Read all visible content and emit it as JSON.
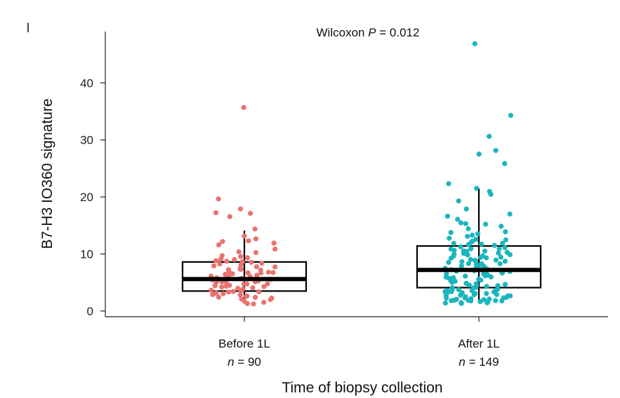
{
  "panel_mark": "l",
  "chart_data": {
    "type": "box",
    "title": "",
    "ylabel": "B7-H3 IO360 signature",
    "xlabel": "Time of biopsy collection",
    "ylim": [
      -1,
      49
    ],
    "yticks": [
      0,
      10,
      20,
      30,
      40
    ],
    "annotation": {
      "prefix": "Wilcoxon ",
      "italic": "P",
      "suffix": " = 0.012"
    },
    "groups": [
      {
        "category": "Before 1L",
        "n_prefix": "n",
        "n_suffix": " = 90",
        "color": "#E8736F",
        "box": {
          "q1": 3.5,
          "median": 5.6,
          "q3": 8.6,
          "whisker_low": 1.3,
          "whisker_high": 14.1
        },
        "points": [
          35.7,
          19.6,
          17.9,
          17.3,
          17.1,
          16.6,
          14.3,
          13.1,
          12.6,
          12.3,
          12.1,
          12.0,
          11.6,
          10.8,
          10.4,
          10.2,
          9.8,
          9.5,
          9.3,
          9.2,
          9.0,
          8.9,
          8.8,
          8.6,
          8.5,
          8.4,
          8.2,
          8.0,
          7.9,
          7.8,
          7.7,
          7.5,
          7.4,
          7.3,
          7.2,
          7.1,
          7.0,
          6.9,
          6.8,
          6.7,
          6.6,
          6.5,
          6.4,
          6.3,
          6.2,
          6.1,
          6.0,
          5.9,
          5.8,
          5.7,
          5.6,
          5.5,
          5.4,
          5.3,
          5.2,
          5.1,
          5.0,
          4.9,
          4.8,
          4.7,
          4.6,
          4.5,
          4.4,
          4.3,
          4.2,
          4.1,
          4.0,
          3.9,
          3.8,
          3.7,
          3.6,
          3.5,
          3.4,
          3.3,
          3.2,
          3.1,
          3.0,
          2.9,
          2.8,
          2.7,
          2.6,
          2.5,
          2.4,
          2.3,
          2.2,
          2.0,
          1.8,
          1.6,
          1.4,
          1.3
        ]
      },
      {
        "category": "After 1L",
        "n_prefix": "n",
        "n_suffix": " = 149",
        "color": "#1BB5BE",
        "box": {
          "q1": 4.1,
          "median": 7.2,
          "q3": 11.4,
          "whisker_low": 1.4,
          "whisker_high": 21.5
        },
        "points": [
          46.8,
          34.3,
          30.6,
          28.2,
          27.5,
          25.9,
          22.3,
          21.6,
          20.9,
          20.4,
          19.3,
          17.8,
          17.0,
          16.6,
          16.1,
          15.5,
          15.4,
          15.2,
          14.8,
          14.4,
          13.9,
          13.7,
          13.5,
          13.3,
          13.0,
          12.8,
          12.6,
          12.4,
          12.2,
          12.0,
          11.9,
          11.8,
          11.7,
          11.6,
          11.5,
          11.3,
          11.2,
          11.0,
          10.9,
          10.8,
          10.7,
          10.6,
          10.5,
          10.4,
          10.3,
          10.2,
          10.1,
          10.0,
          9.9,
          9.8,
          9.7,
          9.6,
          9.5,
          9.4,
          9.3,
          9.2,
          9.1,
          9.0,
          8.9,
          8.8,
          8.7,
          8.6,
          8.5,
          8.4,
          8.3,
          8.2,
          8.1,
          8.0,
          7.9,
          7.8,
          7.7,
          7.6,
          7.5,
          7.4,
          7.3,
          7.2,
          7.1,
          7.0,
          6.9,
          6.8,
          6.7,
          6.6,
          6.5,
          6.4,
          6.3,
          6.2,
          6.1,
          6.0,
          5.9,
          5.8,
          5.7,
          5.6,
          5.5,
          5.4,
          5.3,
          5.2,
          5.1,
          5.0,
          4.9,
          4.8,
          4.7,
          4.6,
          4.5,
          4.4,
          4.3,
          4.2,
          4.1,
          4.0,
          3.9,
          3.8,
          3.7,
          3.6,
          3.5,
          3.4,
          3.3,
          3.2,
          3.1,
          3.0,
          2.9,
          2.8,
          2.7,
          2.6,
          2.5,
          2.4,
          2.3,
          2.2,
          2.1,
          2.0,
          1.9,
          1.8,
          1.7,
          1.6,
          1.5,
          1.4,
          1.4,
          1.5,
          1.6,
          1.7,
          1.8,
          1.9,
          2.0,
          2.2,
          2.4,
          2.6,
          2.8,
          3.0,
          3.2,
          3.4,
          3.6
        ]
      }
    ]
  }
}
